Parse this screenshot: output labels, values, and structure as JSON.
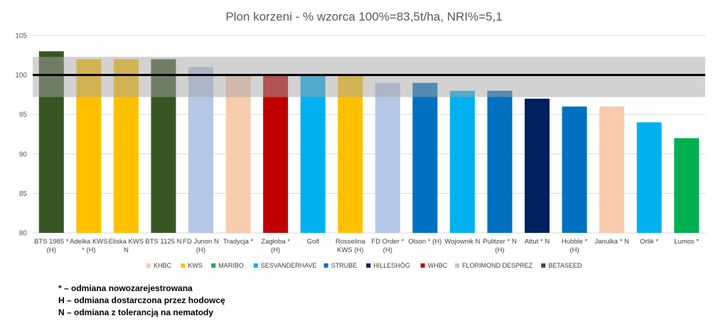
{
  "chart_data": {
    "type": "bar",
    "title": "Plon korzeni - % wzorca 100%=83,5t/ha, NRI%=5,1",
    "ylim": [
      80,
      105
    ],
    "yticks": [
      80,
      85,
      90,
      95,
      100,
      105
    ],
    "grid": true,
    "legend_placement": "bottom",
    "reference_line": 100,
    "band": [
      97.2,
      102.3
    ],
    "categories": [
      [
        "BTS 1985 *",
        "(H)"
      ],
      [
        "Adelka KWS",
        "* (H)"
      ],
      [
        "Eliska KWS",
        "N"
      ],
      [
        "BTS 1125 N"
      ],
      [
        "FD Junon N",
        "(H)"
      ],
      [
        "Tradycja *"
      ],
      [
        "Zagłoba *",
        "(H)"
      ],
      [
        "Golf"
      ],
      [
        "Rosselina",
        "KWS (H)"
      ],
      [
        "FD Order *",
        "(H)"
      ],
      [
        "Olson * (H)"
      ],
      [
        "Wojownik N"
      ],
      [
        "Pulitzer * N",
        "(H)"
      ],
      [
        "Attut * N"
      ],
      [
        "Hubble *",
        "(H)"
      ],
      [
        "Janulka * N"
      ],
      [
        "Orlik *"
      ],
      [
        "Lumos *"
      ]
    ],
    "values": [
      103,
      102,
      102,
      102,
      101,
      100,
      100,
      100,
      100,
      99,
      99,
      98,
      98,
      97,
      96,
      96,
      94,
      92
    ],
    "breeders": [
      "BETASEED",
      "KWS",
      "KWS",
      "BETASEED",
      "FLORIMOND DESPREZ",
      "KHBC",
      "WHBC",
      "SESVANDERHAVE",
      "KWS",
      "FLORIMOND DESPREZ",
      "STRUBE",
      "SESVANDERHAVE",
      "STRUBE",
      "HILLESHÖG",
      "STRUBE",
      "KHBC",
      "SESVANDERHAVE",
      "MARIBO"
    ],
    "legend": [
      {
        "name": "KHBC",
        "color": "#f8cbad"
      },
      {
        "name": "KWS",
        "color": "#ffc000"
      },
      {
        "name": "MARIBO",
        "color": "#00b050"
      },
      {
        "name": "SESVANDERHAVE",
        "color": "#00b0f0"
      },
      {
        "name": "STRUBE",
        "color": "#0070c0"
      },
      {
        "name": "HILLESHÖG",
        "color": "#002060"
      },
      {
        "name": "WHBC",
        "color": "#c00000"
      },
      {
        "name": "FLORIMOND DESPREZ",
        "color": "#b4c7e7"
      },
      {
        "name": "BETASEED",
        "color": "#375623"
      }
    ]
  },
  "notes": [
    "* – odmiana nowozarejestrowana",
    "H – odmiana dostarczona przez hodowcę",
    "N – odmiana z tolerancją na nematody"
  ]
}
